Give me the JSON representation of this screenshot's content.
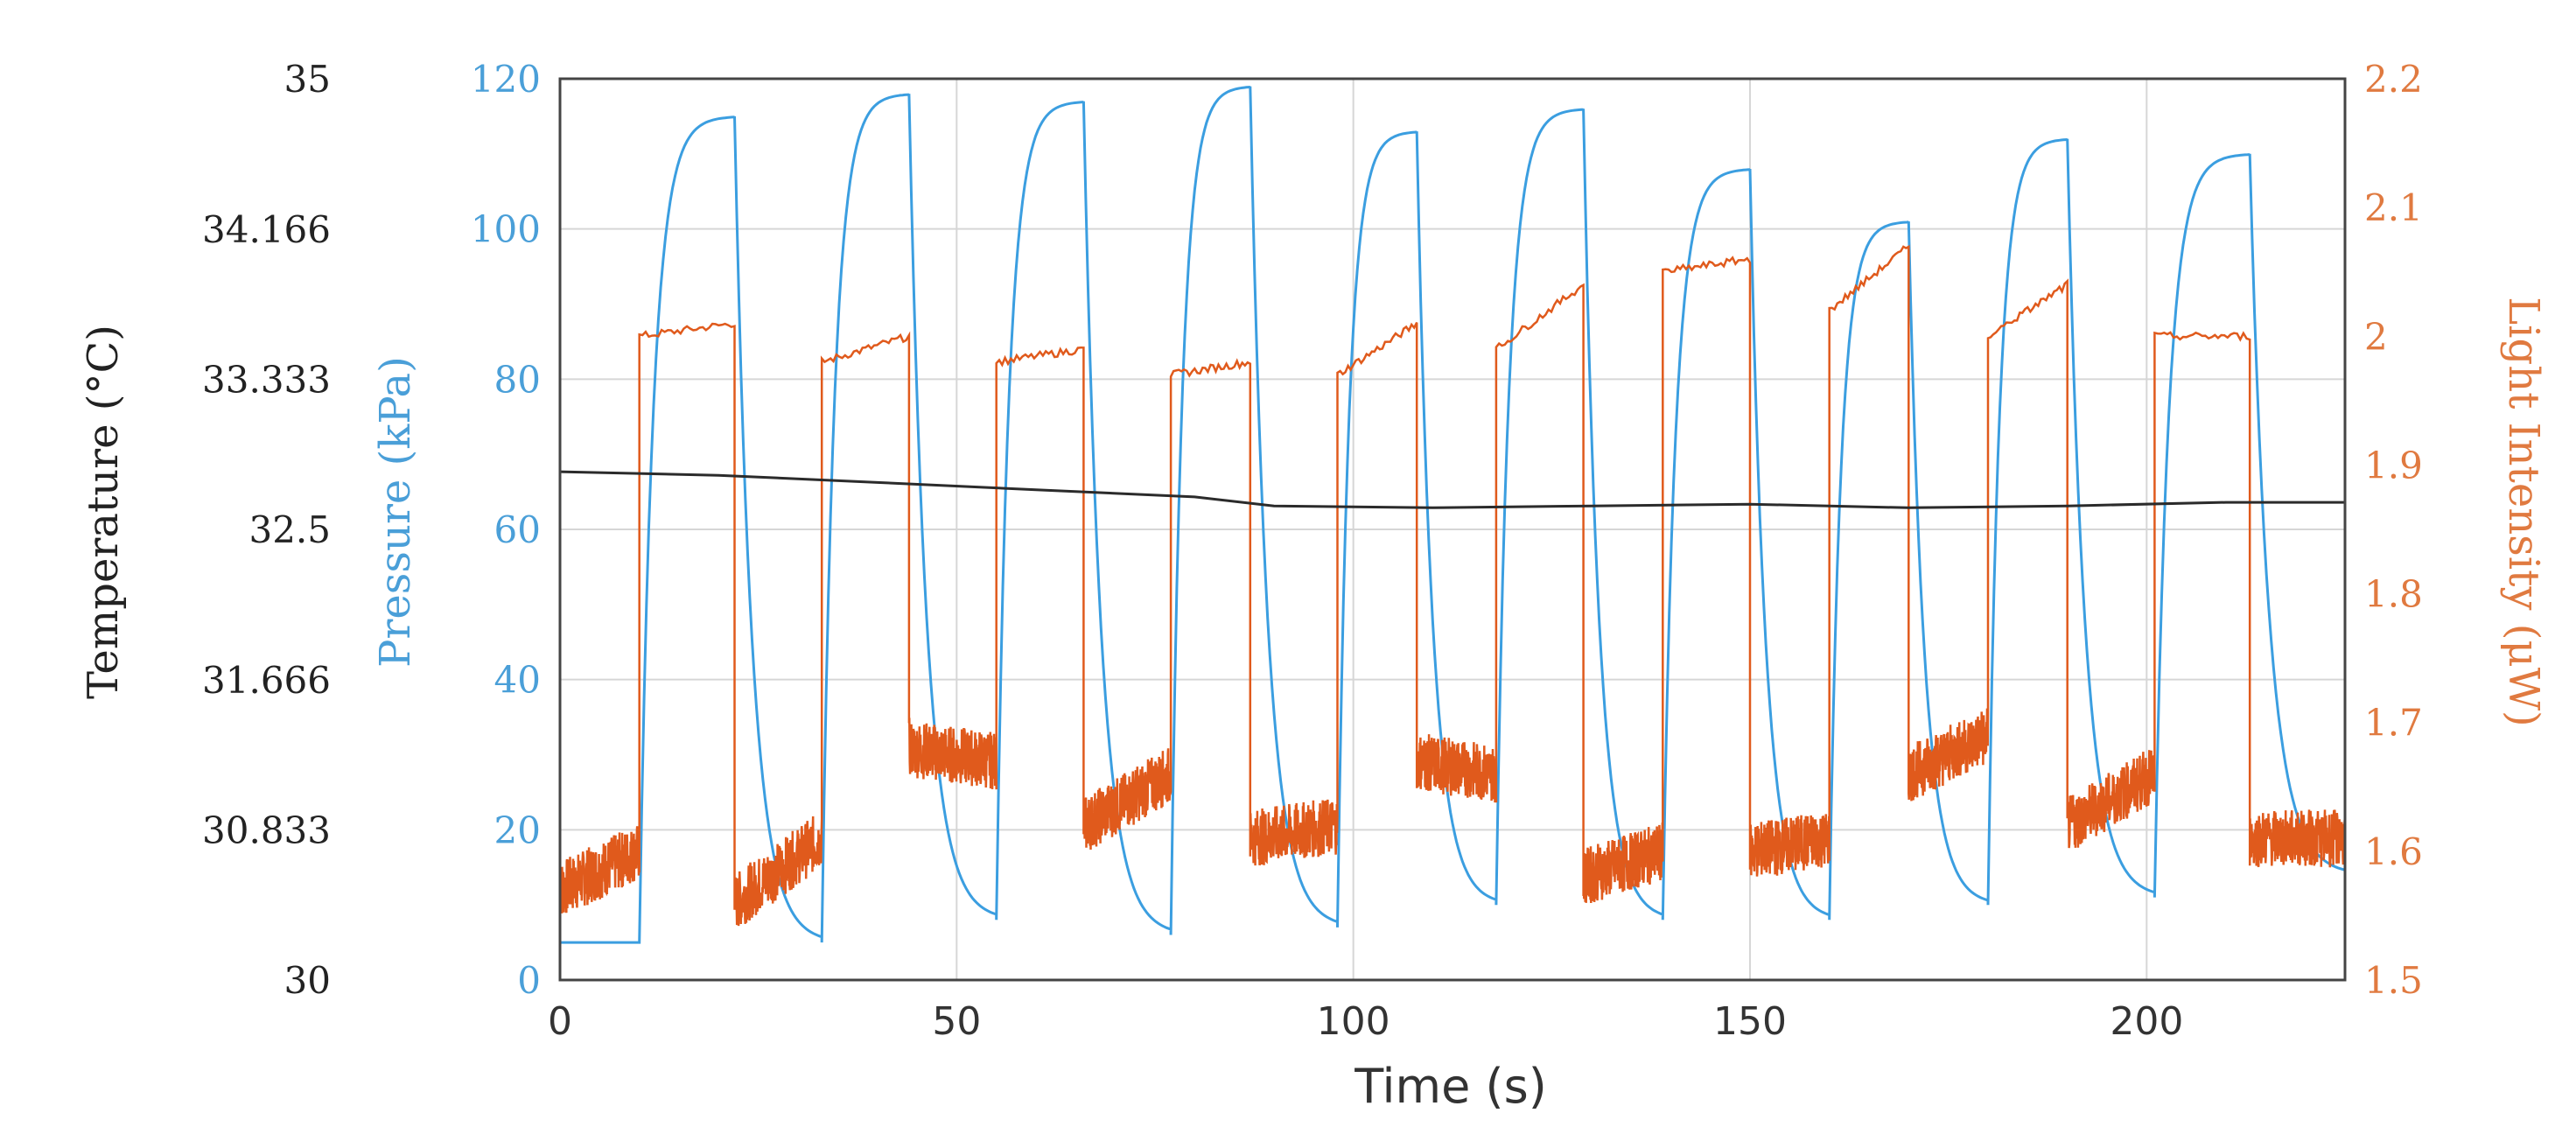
{
  "chart_data": {
    "type": "line",
    "xlabel": "Time (s)",
    "xlim": [
      0,
      225
    ],
    "xticks": [
      0,
      50,
      100,
      150,
      200
    ],
    "grid": true,
    "axes": {
      "pressure": {
        "label": "Pressure (kPa)",
        "lim": [
          0,
          120
        ],
        "ticks": [
          0,
          20,
          40,
          60,
          80,
          100,
          120
        ],
        "tick_labels": [
          "0",
          "20",
          "40",
          "60",
          "80",
          "100",
          "120"
        ],
        "color": "#4a9fd8"
      },
      "temperature": {
        "label": "Temperature (°C)",
        "lim": [
          30,
          35
        ],
        "ticks": [
          30,
          30.833,
          31.666,
          32.5,
          33.333,
          34.166,
          35
        ],
        "tick_labels": [
          "30",
          "30.833",
          "31.666",
          "32.5",
          "33.333",
          "34.166",
          "35"
        ],
        "color": "#222222"
      },
      "light": {
        "label": "Light Intensity (μW)",
        "lim": [
          1.5,
          2.2
        ],
        "ticks": [
          1.5,
          1.6,
          1.7,
          1.8,
          1.9,
          2.0,
          2.1,
          2.2
        ],
        "tick_labels": [
          "1.5",
          "1.6",
          "1.7",
          "1.8",
          "1.9",
          "2",
          "2.1",
          "2.2"
        ],
        "color": "#e07a40"
      }
    },
    "series": [
      {
        "axis": "pressure",
        "color": "#3b9ee0",
        "segments": [
          {
            "x0": 0,
            "x1": 10,
            "base": 5,
            "peak": 5
          },
          {
            "x0": 10,
            "x1": 22,
            "base": 5,
            "peak": 115
          },
          {
            "x0": 22,
            "x1": 33,
            "base": 5,
            "peak": 115
          },
          {
            "x0": 33,
            "x1": 44,
            "base": 5,
            "peak": 118
          },
          {
            "x0": 44,
            "x1": 55,
            "base": 8,
            "peak": 118
          },
          {
            "x0": 55,
            "x1": 66,
            "base": 8,
            "peak": 117
          },
          {
            "x0": 66,
            "x1": 77,
            "base": 6,
            "peak": 117
          },
          {
            "x0": 77,
            "x1": 87,
            "base": 6,
            "peak": 119
          },
          {
            "x0": 87,
            "x1": 98,
            "base": 7,
            "peak": 119
          },
          {
            "x0": 98,
            "x1": 108,
            "base": 7,
            "peak": 113
          },
          {
            "x0": 108,
            "x1": 118,
            "base": 10,
            "peak": 113
          },
          {
            "x0": 118,
            "x1": 129,
            "base": 10,
            "peak": 116
          },
          {
            "x0": 129,
            "x1": 139,
            "base": 8,
            "peak": 116
          },
          {
            "x0": 139,
            "x1": 150,
            "base": 8,
            "peak": 108
          },
          {
            "x0": 150,
            "x1": 160,
            "base": 8,
            "peak": 108
          },
          {
            "x0": 160,
            "x1": 170,
            "base": 8,
            "peak": 101
          },
          {
            "x0": 170,
            "x1": 180,
            "base": 10,
            "peak": 101
          },
          {
            "x0": 180,
            "x1": 190,
            "base": 10,
            "peak": 112
          },
          {
            "x0": 190,
            "x1": 201,
            "base": 11,
            "peak": 112
          },
          {
            "x0": 201,
            "x1": 213,
            "base": 11,
            "peak": 110
          },
          {
            "x0": 213,
            "x1": 225,
            "base": 14,
            "peak": 110
          }
        ]
      },
      {
        "axis": "light",
        "color": "#e05a1c",
        "on_intervals": [
          [
            10,
            22
          ],
          [
            33,
            44
          ],
          [
            55,
            66
          ],
          [
            77,
            87
          ],
          [
            98,
            108
          ],
          [
            118,
            129
          ],
          [
            139,
            150
          ],
          [
            160,
            170
          ],
          [
            180,
            190
          ],
          [
            201,
            213
          ]
        ],
        "on_levels": [
          [
            2.0,
            2.01
          ],
          [
            1.98,
            2.0
          ],
          [
            1.98,
            1.99
          ],
          [
            1.97,
            1.98
          ],
          [
            1.97,
            2.01
          ],
          [
            1.99,
            2.04
          ],
          [
            2.05,
            2.06
          ],
          [
            2.02,
            2.07
          ],
          [
            2.0,
            2.04
          ],
          [
            2.0,
            2.0
          ]
        ],
        "off_levels": [
          [
            1.57,
            1.6
          ],
          [
            1.56,
            1.61
          ],
          [
            1.68,
            1.67
          ],
          [
            1.62,
            1.66
          ],
          [
            1.61,
            1.62
          ],
          [
            1.67,
            1.66
          ],
          [
            1.58,
            1.6
          ],
          [
            1.6,
            1.61
          ],
          [
            1.66,
            1.69
          ],
          [
            1.62,
            1.66
          ],
          [
            1.61,
            1.61
          ]
        ]
      },
      {
        "axis": "temperature",
        "color": "#2b2b2b",
        "x": [
          0,
          20,
          40,
          60,
          80,
          90,
          110,
          130,
          150,
          170,
          190,
          210,
          225
        ],
        "y": [
          32.82,
          32.8,
          32.76,
          32.72,
          32.68,
          32.63,
          32.62,
          32.63,
          32.64,
          32.62,
          32.63,
          32.65,
          32.65
        ]
      }
    ]
  }
}
